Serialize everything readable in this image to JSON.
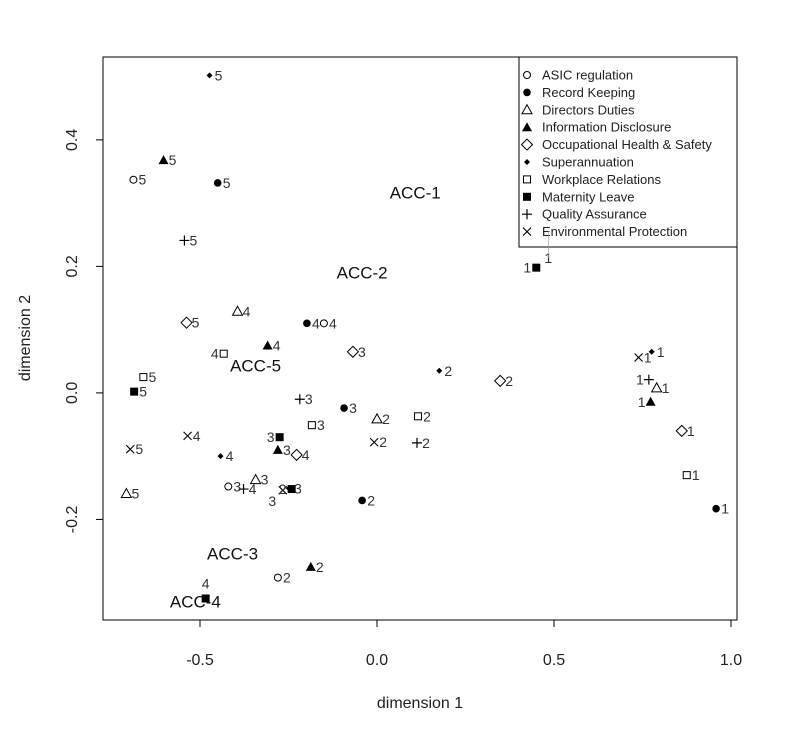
{
  "chart_data": {
    "type": "scatter",
    "title": "",
    "xlabel": "dimension 1",
    "ylabel": "dimension 2",
    "xlim": [
      -0.774,
      1.017
    ],
    "ylim": [
      -0.359,
      0.531
    ],
    "xticks": [
      "-0.5",
      "0.0",
      "0.5",
      "1.0"
    ],
    "yticks": [
      "-0.2",
      "0.0",
      "0.2",
      "0.4"
    ],
    "grid": false,
    "legend_position": "top-right",
    "series": [
      {
        "name": "ASIC regulation",
        "marker": "open-circle",
        "points": [
          {
            "label": "5",
            "x": -0.688,
            "y": 0.337
          },
          {
            "label": "4",
            "x": -0.15,
            "y": 0.11
          },
          {
            "label": "3",
            "x": -0.42,
            "y": -0.148
          },
          {
            "label": "2",
            "x": -0.28,
            "y": -0.292
          },
          {
            "label": "1",
            "x": 0.484,
            "y": 0.256
          }
        ]
      },
      {
        "name": "Record Keeping",
        "marker": "filled-circle",
        "points": [
          {
            "label": "5",
            "x": -0.45,
            "y": 0.332
          },
          {
            "label": "4",
            "x": -0.198,
            "y": 0.11
          },
          {
            "label": "3",
            "x": -0.093,
            "y": -0.024
          },
          {
            "label": "2",
            "x": -0.042,
            "y": -0.17
          },
          {
            "label": "1",
            "x": 0.958,
            "y": -0.183
          }
        ]
      },
      {
        "name": "Directors Duties",
        "marker": "open-triangle",
        "points": [
          {
            "label": "5",
            "x": -0.708,
            "y": -0.159
          },
          {
            "label": "4",
            "x": -0.394,
            "y": 0.129
          },
          {
            "label": "3",
            "x": -0.343,
            "y": -0.137
          },
          {
            "label": "2",
            "x": 0.0,
            "y": -0.041
          },
          {
            "label": "1",
            "x": 0.79,
            "y": 0.008
          }
        ]
      },
      {
        "name": "Information Disclosure",
        "marker": "filled-triangle",
        "points": [
          {
            "label": "5",
            "x": -0.603,
            "y": 0.368
          },
          {
            "label": "4",
            "x": -0.309,
            "y": 0.075
          },
          {
            "label": "3",
            "x": -0.28,
            "y": -0.09
          },
          {
            "label": "2",
            "x": -0.187,
            "y": -0.275
          },
          {
            "label": "1",
            "x": 0.773,
            "y": -0.014
          }
        ]
      },
      {
        "name": "Occupational Health & Safety",
        "marker": "open-diamond",
        "points": [
          {
            "label": "5",
            "x": -0.538,
            "y": 0.111
          },
          {
            "label": "4",
            "x": -0.227,
            "y": -0.098
          },
          {
            "label": "3",
            "x": -0.068,
            "y": 0.065
          },
          {
            "label": "2",
            "x": 0.348,
            "y": 0.019
          },
          {
            "label": "1",
            "x": 0.861,
            "y": -0.06
          }
        ]
      },
      {
        "name": "Superannuation",
        "marker": "small-filled-diamond",
        "points": [
          {
            "label": "5",
            "x": -0.473,
            "y": 0.502
          },
          {
            "label": "4",
            "x": -0.442,
            "y": -0.1
          },
          {
            "label": "3",
            "x": -0.249,
            "y": -0.151
          },
          {
            "label": "2",
            "x": 0.176,
            "y": 0.035
          },
          {
            "label": "1",
            "x": 0.776,
            "y": 0.065
          }
        ]
      },
      {
        "name": "Workplace Relations",
        "marker": "open-square",
        "points": [
          {
            "label": "5",
            "x": -0.66,
            "y": 0.025
          },
          {
            "label": "4",
            "x": -0.433,
            "y": 0.062
          },
          {
            "label": "3",
            "x": -0.184,
            "y": -0.051
          },
          {
            "label": "2",
            "x": 0.116,
            "y": -0.037
          },
          {
            "label": "1",
            "x": 0.875,
            "y": -0.13
          }
        ]
      },
      {
        "name": "Maternity Leave",
        "marker": "filled-square",
        "points": [
          {
            "label": "5",
            "x": -0.686,
            "y": 0.002
          },
          {
            "label": "4",
            "x": -0.484,
            "y": -0.325
          },
          {
            "label": "3",
            "x": -0.275,
            "y": -0.07
          },
          {
            "label": "2",
            "x": -0.241,
            "y": -0.152
          },
          {
            "label": "1",
            "x": 0.45,
            "y": 0.198
          }
        ]
      },
      {
        "name": "Quality Assurance",
        "marker": "plus",
        "points": [
          {
            "label": "5",
            "x": -0.544,
            "y": 0.241
          },
          {
            "label": "4",
            "x": -0.377,
            "y": -0.152
          },
          {
            "label": "3",
            "x": -0.218,
            "y": -0.01
          },
          {
            "label": "2",
            "x": 0.113,
            "y": -0.079
          },
          {
            "label": "1",
            "x": 0.768,
            "y": 0.021
          }
        ]
      },
      {
        "name": "Environmental Protection",
        "marker": "cross",
        "points": [
          {
            "label": "5",
            "x": -0.697,
            "y": -0.089
          },
          {
            "label": "4",
            "x": -0.535,
            "y": -0.068
          },
          {
            "label": "3",
            "x": -0.266,
            "y": -0.154
          },
          {
            "label": "2",
            "x": -0.008,
            "y": -0.078
          },
          {
            "label": "1",
            "x": 0.739,
            "y": 0.056
          }
        ]
      }
    ],
    "annotations": [
      {
        "text": "ACC-1",
        "x": 0.108,
        "y": 0.317
      },
      {
        "text": "ACC-2",
        "x": -0.042,
        "y": 0.19
      },
      {
        "text": "ACC-3",
        "x": -0.408,
        "y": -0.254
      },
      {
        "text": "ACC-4",
        "x": -0.513,
        "y": -0.33
      },
      {
        "text": "ACC-5",
        "x": -0.343,
        "y": 0.043
      }
    ]
  }
}
